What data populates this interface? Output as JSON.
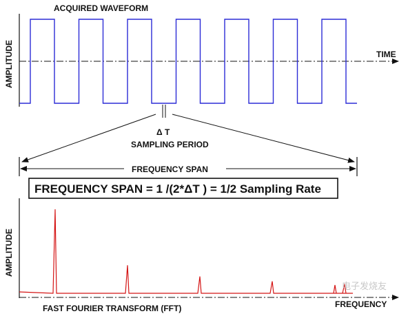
{
  "top_panel": {
    "title": "ACQUIRED WAVEFORM",
    "y_axis_label": "AMPLITUDE",
    "x_axis_label": "TIME",
    "delta_label": "Δ T",
    "period_label": "SAMPLING PERIOD",
    "square_wave_cycles": 7
  },
  "span": {
    "label": "FREQUENCY SPAN",
    "formula": "FREQUENCY SPAN = 1 /(2*ΔT ) = 1/2 Sampling Rate"
  },
  "bottom_panel": {
    "y_axis_label": "AMPLITUDE",
    "x_axis_label": "FREQUENCY",
    "title": "FAST FOURIER TRANSFORM (FFT)",
    "harmonic_order": [
      1,
      3,
      5,
      7,
      9
    ]
  },
  "watermark": "电子发烧友",
  "colors": {
    "waveform": "#2b2bd6",
    "spectrum": "#d41414",
    "axis": "#111111"
  }
}
